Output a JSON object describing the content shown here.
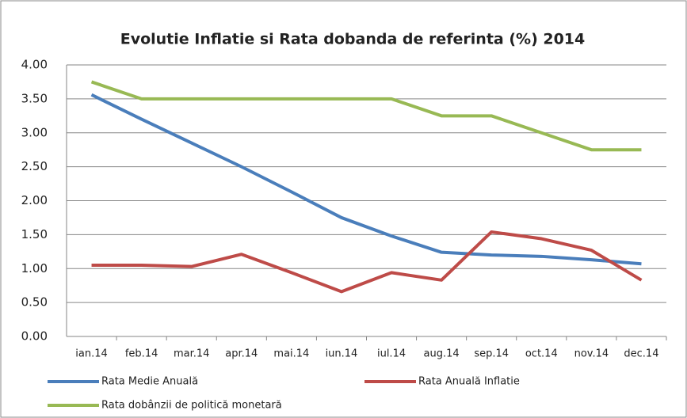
{
  "chart_data": {
    "type": "line",
    "title": "Evolutie Inflatie si Rata dobanda de referinta (%) 2014",
    "categories": [
      "ian.14",
      "feb.14",
      "mar.14",
      "apr.14",
      "mai.14",
      "iun.14",
      "iul.14",
      "aug.14",
      "sep.14",
      "oct.14",
      "nov.14",
      "dec.14"
    ],
    "series": [
      {
        "name": "Rata Medie Anuală",
        "color": "#4a7ebb",
        "values": [
          3.56,
          3.2,
          2.85,
          2.5,
          2.13,
          1.75,
          1.48,
          1.24,
          1.2,
          1.18,
          1.13,
          1.07
        ]
      },
      {
        "name": "Rata Anuală Inflatie",
        "color": "#be4b48",
        "values": [
          1.05,
          1.05,
          1.03,
          1.21,
          0.94,
          0.66,
          0.94,
          0.83,
          1.54,
          1.44,
          1.27,
          0.83
        ]
      },
      {
        "name": "Rata dobânzii de politică monetară",
        "color": "#98b954",
        "values": [
          3.75,
          3.5,
          3.5,
          3.5,
          3.5,
          3.5,
          3.5,
          3.25,
          3.25,
          3.0,
          2.75,
          2.75
        ]
      }
    ],
    "ylim": [
      0,
      4
    ],
    "yticks": [
      {
        "value": 0,
        "label": "0.00"
      },
      {
        "value": 0.5,
        "label": "0.50"
      },
      {
        "value": 1,
        "label": "1.00"
      },
      {
        "value": 1.5,
        "label": "1.50"
      },
      {
        "value": 2,
        "label": "2.00"
      },
      {
        "value": 2.5,
        "label": "2.50"
      },
      {
        "value": 3,
        "label": "3.00"
      },
      {
        "value": 3.5,
        "label": "3.50"
      },
      {
        "value": 4,
        "label": "4.00"
      }
    ],
    "grid": true,
    "legend": "bottom"
  }
}
